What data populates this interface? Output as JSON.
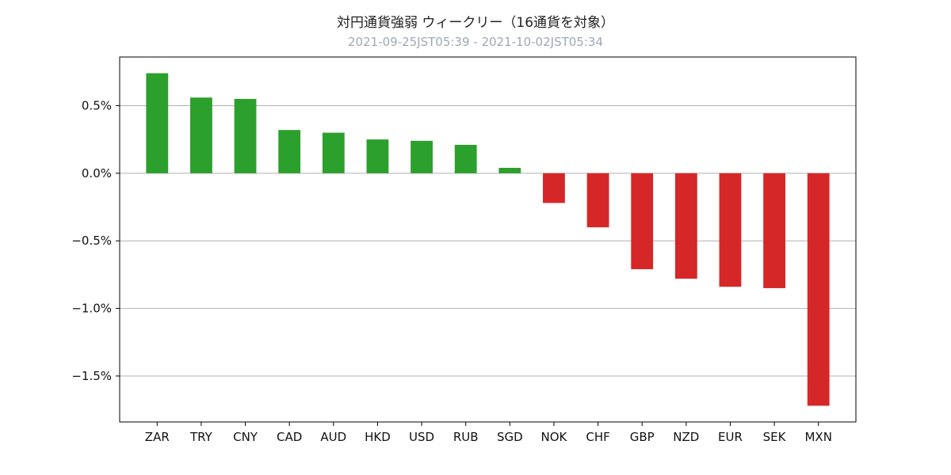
{
  "chart_data": {
    "type": "bar",
    "title": "対円通貨強弱 ウィークリー（16通貨を対象）",
    "subtitle": "2021-09-25JST05:39 - 2021-10-02JST05:34",
    "categories": [
      "ZAR",
      "TRY",
      "CNY",
      "CAD",
      "AUD",
      "HKD",
      "USD",
      "RUB",
      "SGD",
      "NOK",
      "CHF",
      "GBP",
      "NZD",
      "EUR",
      "SEK",
      "MXN"
    ],
    "values": [
      0.74,
      0.56,
      0.55,
      0.32,
      0.3,
      0.25,
      0.24,
      0.21,
      0.04,
      -0.22,
      -0.4,
      -0.71,
      -0.78,
      -0.84,
      -0.85,
      -1.72
    ],
    "ylim": [
      -1.84,
      0.86
    ],
    "yticks": [
      0.5,
      0.0,
      -0.5,
      -1.0,
      -1.5
    ],
    "ytick_labels": [
      "0.5%",
      "0.0%",
      "−0.5%",
      "−1.0%",
      "−1.5%"
    ],
    "xlabel": "",
    "ylabel": "",
    "grid": "horizontal",
    "positive_color": "#2ca02c",
    "negative_color": "#d62728"
  }
}
